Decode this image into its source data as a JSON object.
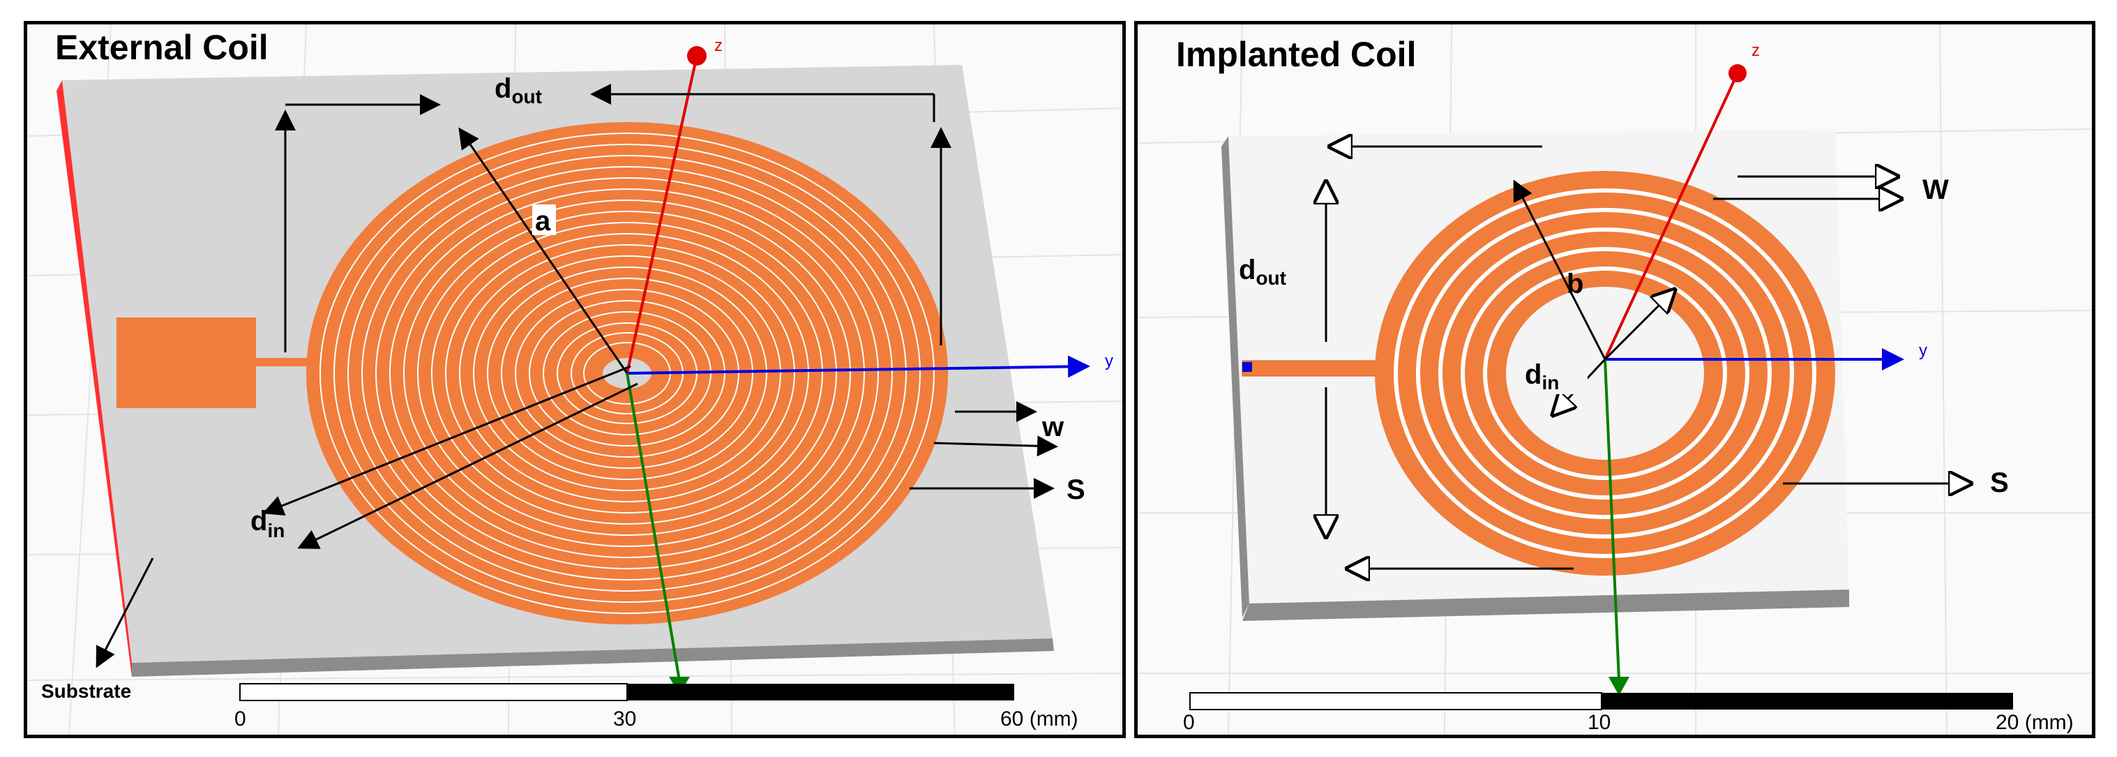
{
  "external": {
    "title": "External Coil",
    "labels": {
      "dout_main": "d",
      "dout_sub": "out",
      "a": "a",
      "din_main": "d",
      "din_sub": "in",
      "w": "w",
      "s": "S",
      "substrate": "Substrate"
    },
    "axes": {
      "z": "z",
      "y": "y"
    },
    "scale": {
      "tick0": "0",
      "tick1": "30",
      "tick2": "60 (mm)"
    }
  },
  "implanted": {
    "title": "Implanted Coil",
    "labels": {
      "dout_main": "d",
      "dout_sub": "out",
      "b": "b",
      "din_main": "d",
      "din_sub": "in",
      "w": "W",
      "s": "S"
    },
    "axes": {
      "z": "z",
      "y": "y"
    },
    "scale": {
      "tick0": "0",
      "tick1": "10",
      "tick2": "20 (mm)"
    }
  },
  "colors": {
    "coil": "#f07d3c",
    "substrate": "#dcdcdc",
    "z_axis": "#e00000",
    "y_axis": "#0000e0",
    "x_axis": "#008000"
  }
}
